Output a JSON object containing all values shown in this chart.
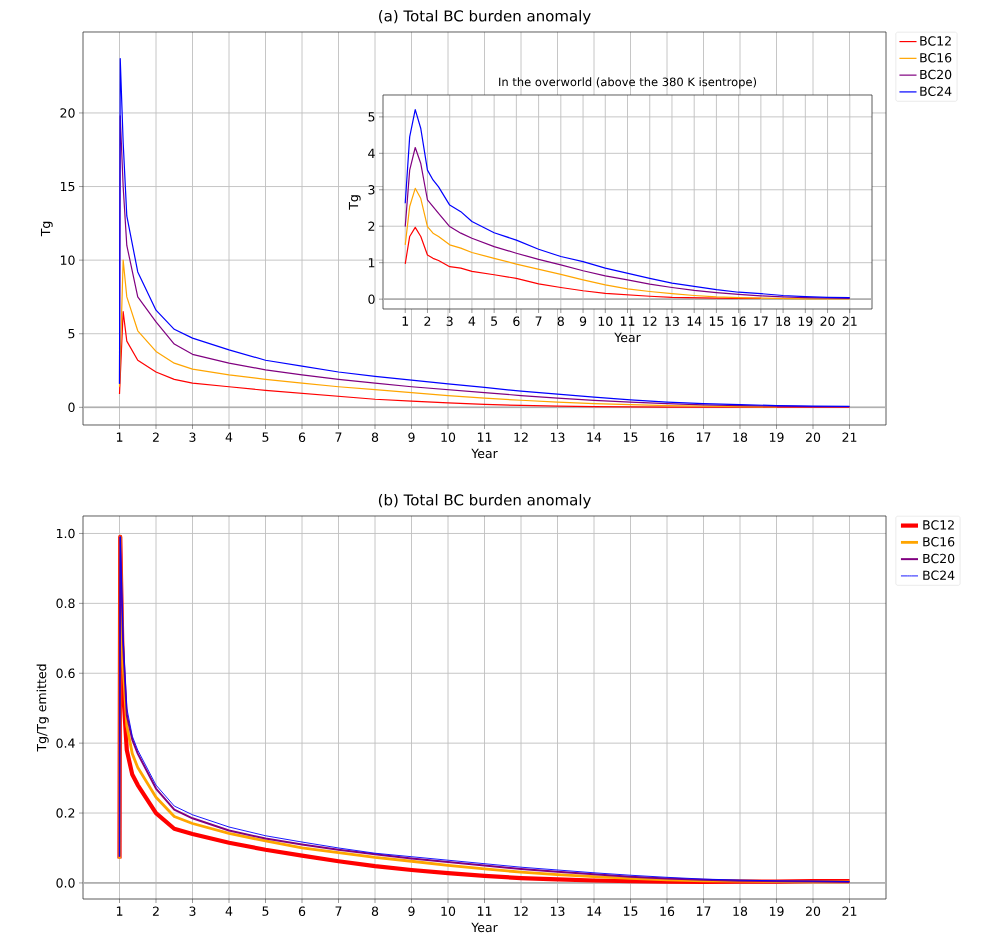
{
  "chart_data": [
    {
      "type": "line",
      "title": "(a) Total BC burden anomaly",
      "xlabel": "Year",
      "ylabel": "Tg",
      "xlim": [
        0,
        22
      ],
      "ylim": [
        -1.2,
        25.5
      ],
      "xticks": [
        1,
        2,
        3,
        4,
        5,
        6,
        7,
        8,
        9,
        10,
        11,
        12,
        13,
        14,
        15,
        16,
        17,
        18,
        19,
        20,
        21
      ],
      "yticks": [
        0,
        5,
        10,
        15,
        20
      ],
      "grid": true,
      "legend": "top right",
      "ref_lines": [
        {
          "axis": "y",
          "value": 0,
          "color": "#b0b0b0"
        }
      ],
      "x": [
        1,
        1.02,
        1.1,
        1.2,
        1.5,
        2,
        2.5,
        3,
        4,
        5,
        6,
        7,
        8,
        9,
        10,
        11,
        12,
        13,
        14,
        15,
        16,
        17,
        18,
        19,
        20,
        21
      ],
      "series": [
        {
          "name": "BC12",
          "color": "#ff0000",
          "values": [
            0.9,
            null,
            6.5,
            4.5,
            3.2,
            2.4,
            1.9,
            1.65,
            1.4,
            1.15,
            0.95,
            0.75,
            0.55,
            0.42,
            0.3,
            0.2,
            0.13,
            0.08,
            0.05,
            0.03,
            0.02,
            0.01,
            0.01,
            0.01,
            0.01,
            0.01
          ]
        },
        {
          "name": "BC16",
          "color": "#ffa500",
          "values": [
            1.4,
            null,
            10,
            7.5,
            5.2,
            3.8,
            3.0,
            2.6,
            2.2,
            1.9,
            1.65,
            1.4,
            1.2,
            1.0,
            0.8,
            0.62,
            0.48,
            0.35,
            0.25,
            0.18,
            0.12,
            0.08,
            0.05,
            0.03,
            null,
            null
          ]
        },
        {
          "name": "BC20",
          "color": "#800080",
          "values": [
            1.6,
            19.8,
            15,
            11,
            7.5,
            5.8,
            4.3,
            3.6,
            3.0,
            2.55,
            2.2,
            1.9,
            1.65,
            1.4,
            1.2,
            1.0,
            0.8,
            0.62,
            0.47,
            0.35,
            0.25,
            0.17,
            0.12,
            0.08,
            0.05,
            0.04
          ]
        },
        {
          "name": "BC24",
          "color": "#0000ff",
          "values": [
            1.6,
            23.7,
            18,
            13,
            9.2,
            6.6,
            5.3,
            4.7,
            3.9,
            3.2,
            2.8,
            2.4,
            2.1,
            1.85,
            1.6,
            1.35,
            1.1,
            0.9,
            0.7,
            0.5,
            0.35,
            0.25,
            0.18,
            0.12,
            0.08,
            0.06
          ]
        }
      ]
    },
    {
      "type": "line",
      "title": "In the overworld (above the 380 K isentrope)",
      "xlabel": "Year",
      "ylabel": "Tg",
      "xlim": [
        0,
        22
      ],
      "ylim": [
        -0.27,
        5.6
      ],
      "xticks": [
        1,
        2,
        3,
        4,
        5,
        6,
        7,
        8,
        9,
        10,
        11,
        12,
        13,
        14,
        15,
        16,
        17,
        18,
        19,
        20,
        21
      ],
      "yticks": [
        0,
        1,
        2,
        3,
        4,
        5
      ],
      "grid": true,
      "ref_lines": [
        {
          "axis": "y",
          "value": 0,
          "color": "#b0b0b0"
        }
      ],
      "x": [
        1,
        1.2,
        1.45,
        1.7,
        2,
        2.25,
        2.5,
        3,
        3.5,
        4,
        5,
        6,
        7,
        8,
        9,
        10,
        11,
        12,
        13,
        14,
        15,
        16,
        17,
        18,
        19,
        20,
        21
      ],
      "series": [
        {
          "color": "#ff0000",
          "values": [
            0.97,
            1.72,
            1.97,
            1.72,
            1.21,
            1.12,
            1.06,
            0.89,
            0.85,
            0.76,
            0.67,
            0.57,
            0.42,
            0.32,
            0.23,
            0.16,
            0.12,
            0.08,
            0.05,
            0.04,
            0.03,
            0.02,
            0.02,
            null,
            null,
            null,
            null
          ]
        },
        {
          "color": "#ffa500",
          "values": [
            1.49,
            2.54,
            3.04,
            2.76,
            1.99,
            1.81,
            1.72,
            1.49,
            1.4,
            1.28,
            1.12,
            0.96,
            0.82,
            0.68,
            0.53,
            0.39,
            0.28,
            0.21,
            0.15,
            0.1,
            0.06,
            0.04,
            0.03,
            0.02,
            0.01,
            0.01,
            0.01
          ]
        },
        {
          "color": "#800080",
          "values": [
            1.99,
            3.54,
            4.16,
            3.72,
            2.72,
            2.54,
            2.35,
            1.99,
            1.81,
            1.67,
            1.44,
            1.26,
            1.09,
            0.94,
            0.78,
            0.64,
            0.53,
            0.41,
            0.32,
            0.24,
            0.18,
            0.13,
            0.09,
            0.06,
            0.04,
            0.03,
            0.02
          ]
        },
        {
          "color": "#0000ff",
          "values": [
            2.63,
            4.45,
            5.2,
            4.68,
            3.54,
            3.27,
            3.08,
            2.58,
            2.4,
            2.13,
            1.82,
            1.62,
            1.37,
            1.17,
            1.03,
            0.85,
            0.71,
            0.57,
            0.44,
            0.35,
            0.26,
            0.19,
            0.15,
            0.1,
            0.07,
            0.05,
            0.04
          ]
        }
      ]
    },
    {
      "type": "line",
      "title": "(b) Total BC burden anomaly",
      "xlabel": "Year",
      "ylabel": "Tg/Tg emitted",
      "xlim": [
        0,
        22
      ],
      "ylim": [
        -0.046,
        1.05
      ],
      "xticks": [
        1,
        2,
        3,
        4,
        5,
        6,
        7,
        8,
        9,
        10,
        11,
        12,
        13,
        14,
        15,
        16,
        17,
        18,
        19,
        20,
        21
      ],
      "yticks": [
        {
          "value": 0,
          "label": "0.0"
        },
        {
          "value": 0.2,
          "label": "0.2"
        },
        {
          "value": 0.4,
          "label": "0.4"
        },
        {
          "value": 0.6,
          "label": "0.6"
        },
        {
          "value": 0.8,
          "label": "0.8"
        },
        {
          "value": 1,
          "label": "1.0"
        }
      ],
      "grid": true,
      "legend": "top right",
      "ref_lines": [
        {
          "axis": "y",
          "value": 0,
          "color": "#b0b0b0"
        }
      ],
      "x": [
        1,
        1.02,
        1.1,
        1.2,
        1.35,
        1.5,
        2,
        2.5,
        3,
        4,
        5,
        6,
        7,
        8,
        9,
        10,
        11,
        12,
        13,
        14,
        15,
        16,
        17,
        18,
        19,
        20,
        21
      ],
      "series": [
        {
          "name": "BC12",
          "color": "#ff0000",
          "values": [
            0.07,
            0.99,
            0.55,
            0.38,
            0.31,
            0.28,
            0.2,
            0.155,
            0.14,
            0.115,
            0.095,
            0.078,
            0.062,
            0.048,
            0.037,
            0.028,
            0.02,
            0.014,
            0.01,
            0.007,
            0.005,
            0.004,
            0.003,
            0.004,
            0.004,
            0.005,
            0.005
          ]
        },
        {
          "name": "BC16",
          "color": "#ffa500",
          "values": [
            0.07,
            0.99,
            0.62,
            0.45,
            0.37,
            0.33,
            0.245,
            0.19,
            0.17,
            0.142,
            0.12,
            0.1,
            0.087,
            0.073,
            0.062,
            0.05,
            0.04,
            0.031,
            0.024,
            0.018,
            0.013,
            0.009,
            0.006,
            0.005,
            0.004,
            0.003,
            0.003
          ]
        },
        {
          "name": "BC20",
          "color": "#800080",
          "values": [
            0.075,
            0.99,
            0.68,
            0.48,
            0.41,
            0.37,
            0.27,
            0.21,
            0.185,
            0.15,
            0.127,
            0.11,
            0.095,
            0.082,
            0.07,
            0.06,
            0.05,
            0.04,
            0.032,
            0.025,
            0.018,
            0.013,
            0.009,
            0.006,
            0.005,
            0.004,
            0.003
          ]
        },
        {
          "name": "BC24",
          "color": "#0000ff",
          "values": [
            0.075,
            0.99,
            0.7,
            0.5,
            0.42,
            0.38,
            0.28,
            0.22,
            0.195,
            0.16,
            0.135,
            0.117,
            0.1,
            0.085,
            0.075,
            0.065,
            0.055,
            0.045,
            0.037,
            0.029,
            0.022,
            0.016,
            0.011,
            0.008,
            0.006,
            0.005,
            0.004
          ]
        }
      ]
    }
  ]
}
